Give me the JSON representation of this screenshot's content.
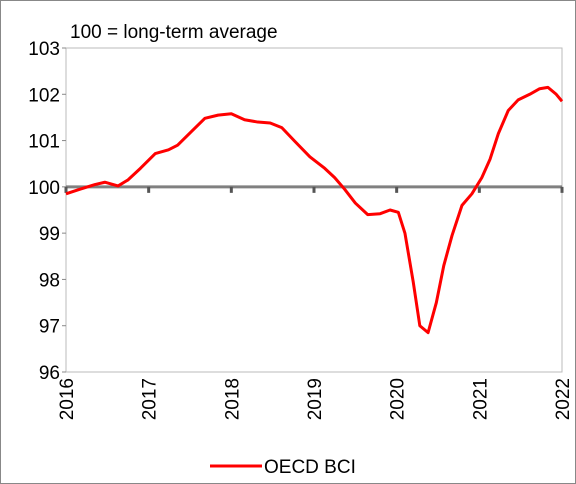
{
  "chart_data": {
    "type": "line",
    "annotation": "100 = long-term average",
    "x": [
      2016.0,
      2016.17,
      2016.35,
      2016.47,
      2016.63,
      2016.75,
      2016.9,
      2017.08,
      2017.24,
      2017.35,
      2017.52,
      2017.68,
      2017.84,
      2018.0,
      2018.16,
      2018.32,
      2018.47,
      2018.61,
      2018.77,
      2018.95,
      2019.13,
      2019.25,
      2019.37,
      2019.5,
      2019.65,
      2019.8,
      2019.92,
      2020.02,
      2020.1,
      2020.2,
      2020.28,
      2020.38,
      2020.48,
      2020.57,
      2020.67,
      2020.79,
      2020.91,
      2021.03,
      2021.13,
      2021.23,
      2021.35,
      2021.47,
      2021.61,
      2021.73,
      2021.83,
      2021.93,
      2022.0
    ],
    "series": [
      {
        "name": "OECD BCI",
        "color": "#ff0000",
        "values": [
          99.85,
          99.95,
          100.05,
          100.1,
          100.02,
          100.15,
          100.4,
          100.72,
          100.8,
          100.9,
          101.2,
          101.48,
          101.55,
          101.58,
          101.45,
          101.4,
          101.38,
          101.28,
          100.98,
          100.65,
          100.4,
          100.2,
          99.95,
          99.65,
          99.4,
          99.42,
          99.5,
          99.45,
          99.0,
          97.95,
          97.0,
          96.85,
          97.5,
          98.3,
          98.95,
          99.6,
          99.85,
          100.2,
          100.6,
          101.15,
          101.65,
          101.88,
          102.0,
          102.12,
          102.15,
          102.0,
          101.85
        ]
      }
    ],
    "xlim": [
      2016,
      2022
    ],
    "xticks": [
      2016,
      2017,
      2018,
      2019,
      2020,
      2021,
      2022
    ],
    "ylim": [
      96,
      103
    ],
    "yticks": [
      96,
      97,
      98,
      99,
      100,
      101,
      102,
      103
    ],
    "reference_line": 100,
    "legend": "bottom"
  }
}
